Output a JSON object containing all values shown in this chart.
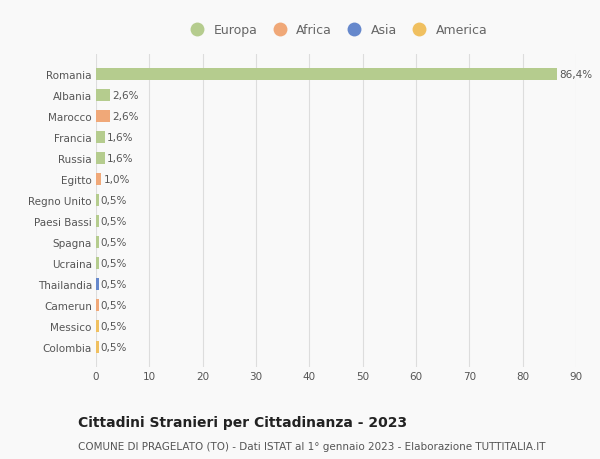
{
  "countries": [
    "Romania",
    "Albania",
    "Marocco",
    "Francia",
    "Russia",
    "Egitto",
    "Regno Unito",
    "Paesi Bassi",
    "Spagna",
    "Ucraina",
    "Thailandia",
    "Camerun",
    "Messico",
    "Colombia"
  ],
  "values": [
    86.4,
    2.6,
    2.6,
    1.6,
    1.6,
    1.0,
    0.5,
    0.5,
    0.5,
    0.5,
    0.5,
    0.5,
    0.5,
    0.5
  ],
  "labels": [
    "86,4%",
    "2,6%",
    "2,6%",
    "1,6%",
    "1,6%",
    "1,0%",
    "0,5%",
    "0,5%",
    "0,5%",
    "0,5%",
    "0,5%",
    "0,5%",
    "0,5%",
    "0,5%"
  ],
  "continents": [
    "Europa",
    "Europa",
    "Africa",
    "Europa",
    "Europa",
    "Africa",
    "Europa",
    "Europa",
    "Europa",
    "Europa",
    "Asia",
    "Africa",
    "America",
    "America"
  ],
  "continent_colors": {
    "Europa": "#b5cc8e",
    "Africa": "#f0a878",
    "Asia": "#6688cc",
    "America": "#f0c060"
  },
  "legend_order": [
    "Europa",
    "Africa",
    "Asia",
    "America"
  ],
  "legend_colors": [
    "#b5cc8e",
    "#f0a878",
    "#6688cc",
    "#f0c060"
  ],
  "title": "Cittadini Stranieri per Cittadinanza - 2023",
  "subtitle": "COMUNE DI PRAGELATO (TO) - Dati ISTAT al 1° gennaio 2023 - Elaborazione TUTTITALIA.IT",
  "xlim": [
    0,
    90
  ],
  "xticks": [
    0,
    10,
    20,
    30,
    40,
    50,
    60,
    70,
    80,
    90
  ],
  "background_color": "#f9f9f9",
  "grid_color": "#dddddd",
  "title_fontsize": 10,
  "subtitle_fontsize": 7.5,
  "label_fontsize": 7.5,
  "tick_fontsize": 7.5,
  "legend_fontsize": 9
}
